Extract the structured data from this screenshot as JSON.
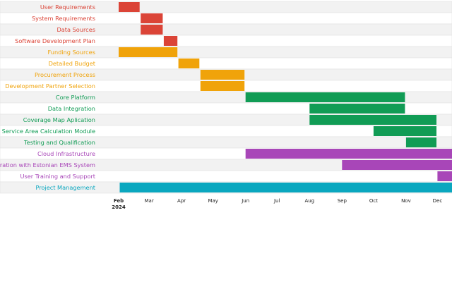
{
  "chart_data": {
    "type": "gantt",
    "title": "",
    "x_axis": {
      "range": [
        "2024-02-01",
        "2024-12-31"
      ],
      "ticks": [
        {
          "date": "2024-02-01",
          "label": "Feb",
          "sublabel": "2024",
          "bold": true
        },
        {
          "date": "2024-03-01",
          "label": "Mar"
        },
        {
          "date": "2024-04-01",
          "label": "Apr"
        },
        {
          "date": "2024-05-01",
          "label": "May"
        },
        {
          "date": "2024-06-01",
          "label": "Jun"
        },
        {
          "date": "2024-07-01",
          "label": "Jul"
        },
        {
          "date": "2024-08-01",
          "label": "Aug"
        },
        {
          "date": "2024-09-01",
          "label": "Sep"
        },
        {
          "date": "2024-10-01",
          "label": "Oct"
        },
        {
          "date": "2024-11-01",
          "label": "Nov"
        },
        {
          "date": "2024-12-01",
          "label": "Dec"
        }
      ]
    },
    "row_stripes": true,
    "colors": {
      "red": "#db4437",
      "orange": "#f0a30a",
      "green": "#119c55",
      "purple": "#a846b8",
      "teal": "#0aa7bf",
      "stripe": "#f2f2f2",
      "row_border": "#e2e2e2"
    },
    "tasks": [
      {
        "name": "User Requirements",
        "start": "2024-02-01",
        "end": "2024-02-21",
        "color": "red"
      },
      {
        "name": "System Requirements",
        "start": "2024-02-22",
        "end": "2024-03-14",
        "color": "red"
      },
      {
        "name": "Data Sources",
        "start": "2024-02-22",
        "end": "2024-03-14",
        "color": "red"
      },
      {
        "name": "Software Development Plan",
        "start": "2024-03-15",
        "end": "2024-03-28",
        "color": "red"
      },
      {
        "name": "Funding Sources",
        "start": "2024-02-01",
        "end": "2024-03-28",
        "color": "orange"
      },
      {
        "name": "Detailed Budget",
        "start": "2024-03-29",
        "end": "2024-04-18",
        "color": "orange"
      },
      {
        "name": "Procurement Process",
        "start": "2024-04-19",
        "end": "2024-05-31",
        "color": "orange"
      },
      {
        "name": "Development Partner Selection",
        "start": "2024-04-19",
        "end": "2024-05-31",
        "color": "orange"
      },
      {
        "name": "Core Platform",
        "start": "2024-06-01",
        "end": "2024-10-31",
        "color": "green"
      },
      {
        "name": "Data Integration",
        "start": "2024-08-01",
        "end": "2024-10-31",
        "color": "green"
      },
      {
        "name": "Coverage Map Aplication",
        "start": "2024-08-01",
        "end": "2024-11-30",
        "color": "green"
      },
      {
        "name": "Service Area Calculation Module",
        "start": "2024-10-01",
        "end": "2024-11-30",
        "color": "green"
      },
      {
        "name": "Testing and Qualification",
        "start": "2024-11-01",
        "end": "2024-11-30",
        "color": "green"
      },
      {
        "name": "Cloud Infrastructure",
        "start": "2024-06-01",
        "end": "2024-12-31",
        "color": "purple"
      },
      {
        "name": "Integration with Estonian EMS System",
        "start": "2024-09-01",
        "end": "2024-12-31",
        "color": "purple"
      },
      {
        "name": "User Training and Support",
        "start": "2024-12-01",
        "end": "2024-12-31",
        "color": "purple"
      },
      {
        "name": "Project Management",
        "start": "2024-02-02",
        "end": "2024-12-31",
        "color": "teal"
      }
    ]
  }
}
